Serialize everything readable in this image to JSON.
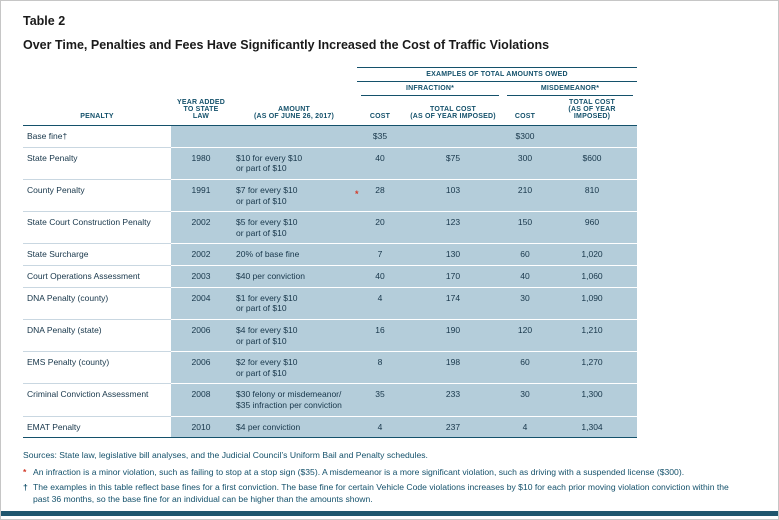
{
  "header": {
    "label": "Table 2",
    "title": "Over Time, Penalties and Fees Have Significantly Increased the Cost of Traffic Violations"
  },
  "table": {
    "headers": {
      "examples": "EXAMPLES OF TOTAL AMOUNTS OWED",
      "infraction": "INFRACTION*",
      "misdemeanor": "MISDEMEANOR*",
      "penalty": "PENALTY",
      "year": "YEAR ADDED\nTO STATE LAW",
      "amount": "AMOUNT\n(AS OF JUNE 26, 2017)",
      "inf_cost": "COST",
      "inf_total": "TOTAL COST\n(AS OF YEAR IMPOSED)",
      "mis_cost": "COST",
      "mis_total": "TOTAL COST\n(AS OF YEAR IMPOSED)"
    },
    "rows": [
      {
        "penalty": "Base fine†",
        "year": "",
        "amount": "",
        "inf_cost": "$35",
        "inf_total": "",
        "mis_cost": "$300",
        "mis_total": ""
      },
      {
        "penalty": "State Penalty",
        "year": "1980",
        "amount": "$10 for every $10\nor part of $10",
        "inf_cost": "40",
        "inf_total": "$75",
        "mis_cost": "300",
        "mis_total": "$600"
      },
      {
        "penalty": "County Penalty",
        "year": "1991",
        "amount": "$7 for every $10\nor part of $10",
        "inf_cost": "28",
        "inf_total": "103",
        "mis_cost": "210",
        "mis_total": "810",
        "marker": "*"
      },
      {
        "penalty": "State Court Construction Penalty",
        "year": "2002",
        "amount": "$5 for every $10\nor part of $10",
        "inf_cost": "20",
        "inf_total": "123",
        "mis_cost": "150",
        "mis_total": "960"
      },
      {
        "penalty": "State Surcharge",
        "year": "2002",
        "amount": "20% of base fine",
        "inf_cost": "7",
        "inf_total": "130",
        "mis_cost": "60",
        "mis_total": "1,020"
      },
      {
        "penalty": "Court Operations Assessment",
        "year": "2003",
        "amount": "$40 per conviction",
        "inf_cost": "40",
        "inf_total": "170",
        "mis_cost": "40",
        "mis_total": "1,060"
      },
      {
        "penalty": "DNA Penalty (county)",
        "year": "2004",
        "amount": "$1 for every $10\nor part of $10",
        "inf_cost": "4",
        "inf_total": "174",
        "mis_cost": "30",
        "mis_total": "1,090"
      },
      {
        "penalty": "DNA Penalty (state)",
        "year": "2006",
        "amount": "$4 for every $10\nor part of $10",
        "inf_cost": "16",
        "inf_total": "190",
        "mis_cost": "120",
        "mis_total": "1,210"
      },
      {
        "penalty": "EMS Penalty (county)",
        "year": "2006",
        "amount": "$2 for every $10\nor part of $10",
        "inf_cost": "8",
        "inf_total": "198",
        "mis_cost": "60",
        "mis_total": "1,270"
      },
      {
        "penalty": "Criminal Conviction Assessment",
        "year": "2008",
        "amount": "$30 felony or misdemeanor/\n$35 infraction per conviction",
        "inf_cost": "35",
        "inf_total": "233",
        "mis_cost": "30",
        "mis_total": "1,300"
      },
      {
        "penalty": "EMAT Penalty",
        "year": "2010",
        "amount": "$4 per conviction",
        "inf_cost": "4",
        "inf_total": "237",
        "mis_cost": "4",
        "mis_total": "1,304"
      }
    ]
  },
  "footnotes": {
    "sources": "Sources:  State law, legislative bill analyses, and the Judicial Council’s Uniform Bail and Penalty schedules.",
    "star_marker": "*",
    "star": "An infraction is a minor violation, such as failing to stop at a stop sign ($35). A misdemeanor is a more significant violation, such as driving with a suspended license ($300).",
    "dagger_marker": "†",
    "dagger": "The examples in this table reflect base fines for a first conviction. The base fine for certain Vehicle Code violations increases by $10 for each prior moving violation conviction within the past 36 months, so the base fine for an individual can be higher than the amounts shown."
  },
  "colors": {
    "navy_text": "#14516b",
    "cell_blue": "#b4cdda",
    "marker_red": "#d23b2a",
    "bottom_bar": "#1f566e"
  }
}
